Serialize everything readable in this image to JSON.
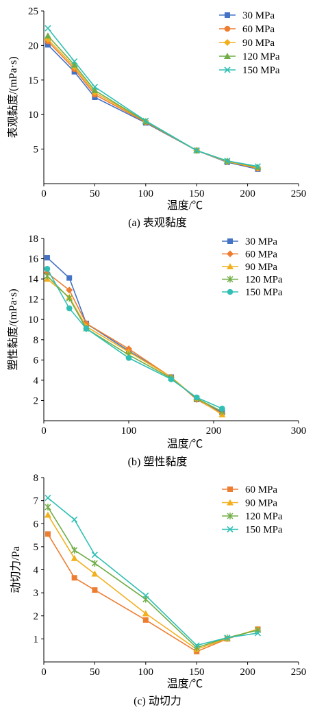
{
  "chart_data": [
    {
      "type": "line",
      "caption": "(a) 表观黏度",
      "xlabel": "温度/℃",
      "ylabel": "表观黏度/(mPa·s)",
      "xlim": [
        0,
        250
      ],
      "ylim": [
        0,
        25
      ],
      "xticks": [
        0,
        50,
        100,
        150,
        200,
        250
      ],
      "yticks": [
        5,
        10,
        15,
        20,
        25
      ],
      "x": [
        4,
        30,
        50,
        100,
        150,
        180,
        210
      ],
      "legend": "top-right",
      "series": [
        {
          "name": "30 MPa",
          "color": "#4472c4",
          "marker": "square",
          "values": [
            20.1,
            16.2,
            12.5,
            8.8,
            4.8,
            3.1,
            2.1
          ]
        },
        {
          "name": "60 MPa",
          "color": "#ed7d31",
          "marker": "circle",
          "values": [
            20.6,
            16.6,
            12.9,
            8.9,
            4.8,
            3.2,
            2.2
          ]
        },
        {
          "name": "90 MPa",
          "color": "#f2b01e",
          "marker": "diamond",
          "values": [
            20.9,
            16.9,
            13.2,
            9.0,
            4.8,
            3.2,
            2.3
          ]
        },
        {
          "name": "120 MPa",
          "color": "#70ad47",
          "marker": "triangle",
          "values": [
            21.4,
            17.2,
            13.5,
            9.0,
            4.8,
            3.3,
            2.4
          ]
        },
        {
          "name": "150 MPa",
          "color": "#2fbfb4",
          "marker": "x",
          "values": [
            22.5,
            17.7,
            14.0,
            9.1,
            4.8,
            3.3,
            2.5
          ]
        }
      ]
    },
    {
      "type": "line",
      "caption": "(b) 塑性黏度",
      "xlabel": "温度/℃",
      "ylabel": "塑性黏度/(mPa·s)",
      "xlim": [
        0,
        300
      ],
      "ylim": [
        0,
        18
      ],
      "xticks": [
        0,
        100,
        200,
        300
      ],
      "yticks": [
        2,
        4,
        6,
        8,
        10,
        12,
        14,
        16,
        18
      ],
      "x": [
        4,
        30,
        50,
        100,
        150,
        180,
        210
      ],
      "legend": "top-right",
      "series": [
        {
          "name": "30 MPa",
          "color": "#4472c4",
          "marker": "square",
          "values": [
            16.1,
            14.1,
            9.6,
            6.9,
            4.3,
            2.1,
            0.8
          ]
        },
        {
          "name": "60 MPa",
          "color": "#ed7d31",
          "marker": "diamond",
          "values": [
            14.6,
            12.9,
            9.6,
            7.1,
            4.3,
            2.1,
            0.7
          ]
        },
        {
          "name": "90 MPa",
          "color": "#f2b01e",
          "marker": "triangle",
          "values": [
            14.0,
            12.2,
            9.3,
            6.8,
            4.3,
            2.2,
            0.6
          ]
        },
        {
          "name": "120 MPa",
          "color": "#70ad47",
          "marker": "star",
          "values": [
            14.3,
            12.1,
            9.1,
            6.5,
            4.2,
            2.2,
            0.9
          ]
        },
        {
          "name": "150 MPa",
          "color": "#2fbfb4",
          "marker": "circle",
          "values": [
            15.0,
            11.1,
            9.1,
            6.2,
            4.1,
            2.3,
            1.2
          ]
        }
      ]
    },
    {
      "type": "line",
      "caption": "(c) 动切力",
      "xlabel": "温度/℃",
      "ylabel": "动切力/Pa",
      "xlim": [
        0,
        250
      ],
      "ylim": [
        0,
        8
      ],
      "xticks": [
        0,
        50,
        100,
        150,
        200,
        250
      ],
      "yticks": [
        1,
        2,
        3,
        4,
        5,
        6,
        7,
        8
      ],
      "x": [
        4,
        30,
        50,
        100,
        150,
        180,
        210
      ],
      "legend": "top-right",
      "series": [
        {
          "name": "60 MPa",
          "color": "#ed7d31",
          "marker": "square",
          "values": [
            5.55,
            3.65,
            3.12,
            1.82,
            0.45,
            1.0,
            1.42
          ]
        },
        {
          "name": "90 MPa",
          "color": "#f2b01e",
          "marker": "triangle",
          "values": [
            6.38,
            4.5,
            3.82,
            2.1,
            0.55,
            1.02,
            1.42
          ]
        },
        {
          "name": "120 MPa",
          "color": "#70ad47",
          "marker": "star",
          "values": [
            6.72,
            4.85,
            4.28,
            2.72,
            0.62,
            1.05,
            1.38
          ]
        },
        {
          "name": "150 MPa",
          "color": "#2fbfb4",
          "marker": "x",
          "values": [
            7.12,
            6.18,
            4.65,
            2.88,
            0.72,
            1.05,
            1.25
          ]
        }
      ]
    }
  ]
}
